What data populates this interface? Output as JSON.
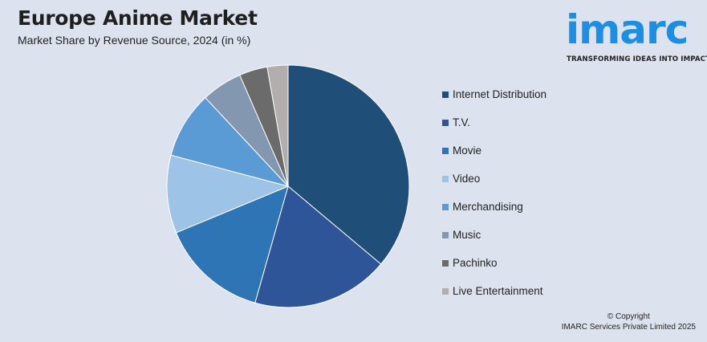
{
  "header": {
    "title": "Europe Anime Market",
    "subtitle": "Market Share by Revenue Source, 2024 (in %)"
  },
  "logo": {
    "wordmark": "imarc",
    "tagline": "TRANSFORMING IDEAS INTO IMPACT",
    "color": "#1a8fe3"
  },
  "chart_data": {
    "type": "pie",
    "title": "Europe Anime Market",
    "subtitle": "Market Share by Revenue Source, 2024 (in %)",
    "legend_position": "right",
    "start_angle": "12 o'clock, clockwise",
    "categories": [
      "Internet Distribution",
      "T.V.",
      "Movie",
      "Video",
      "Merchandising",
      "Music",
      "Pachinko",
      "Live Entertainment"
    ],
    "values": [
      36.5,
      18.5,
      14.5,
      10.5,
      9.0,
      5.5,
      3.8,
      2.8
    ],
    "colors": [
      "#1f4e79",
      "#2e5597",
      "#2e75b6",
      "#9dc3e6",
      "#5b9bd5",
      "#8497b0",
      "#6b6b6b",
      "#b2aead"
    ]
  },
  "footer": {
    "copyright_line1": "© Copyright",
    "copyright_line2": "IMARC Services Private Limited 2025"
  }
}
